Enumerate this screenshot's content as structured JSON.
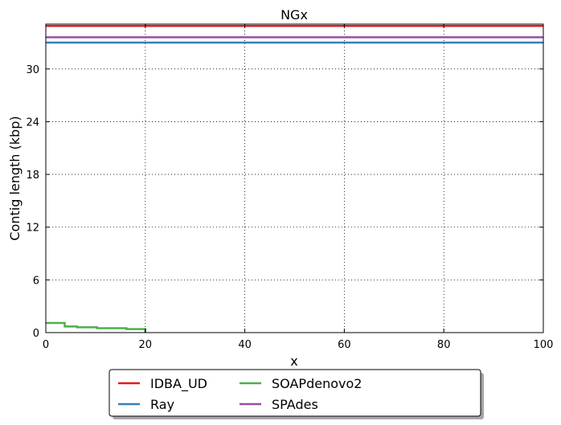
{
  "chart_data": {
    "type": "line",
    "title": "NGx",
    "xlabel": "x",
    "ylabel": "Contig length  (kbp)",
    "xlim": [
      0,
      100
    ],
    "ylim": [
      0,
      35.1
    ],
    "xticks": [
      0,
      20,
      40,
      60,
      80,
      100
    ],
    "yticks": [
      0,
      6,
      12,
      18,
      24,
      30
    ],
    "grid": true,
    "legend": {
      "placement": "bottom-center-outside",
      "columns": 3,
      "entries": [
        "IDBA_UD",
        "Ray",
        "SOAPdenovo2",
        "SPAdes"
      ]
    },
    "series": [
      {
        "name": "IDBA_UD",
        "color": "#e41a1c",
        "step": "post",
        "points": [
          [
            0,
            34.9
          ],
          [
            100,
            34.9
          ]
        ]
      },
      {
        "name": "Ray",
        "color": "#377eb8",
        "step": "post",
        "points": [
          [
            0,
            33.0
          ],
          [
            100,
            33.0
          ]
        ]
      },
      {
        "name": "SOAPdenovo2",
        "color": "#4daf4a",
        "step": "post",
        "points": [
          [
            0,
            1.1
          ],
          [
            3.8,
            0.7
          ],
          [
            6.3,
            0.6
          ],
          [
            10.3,
            0.5
          ],
          [
            16.2,
            0.4
          ],
          [
            20,
            0.0
          ]
        ]
      },
      {
        "name": "SPAdes",
        "color": "#984ea3",
        "step": "post",
        "points": [
          [
            0,
            33.6
          ],
          [
            100,
            33.6
          ]
        ]
      }
    ]
  }
}
